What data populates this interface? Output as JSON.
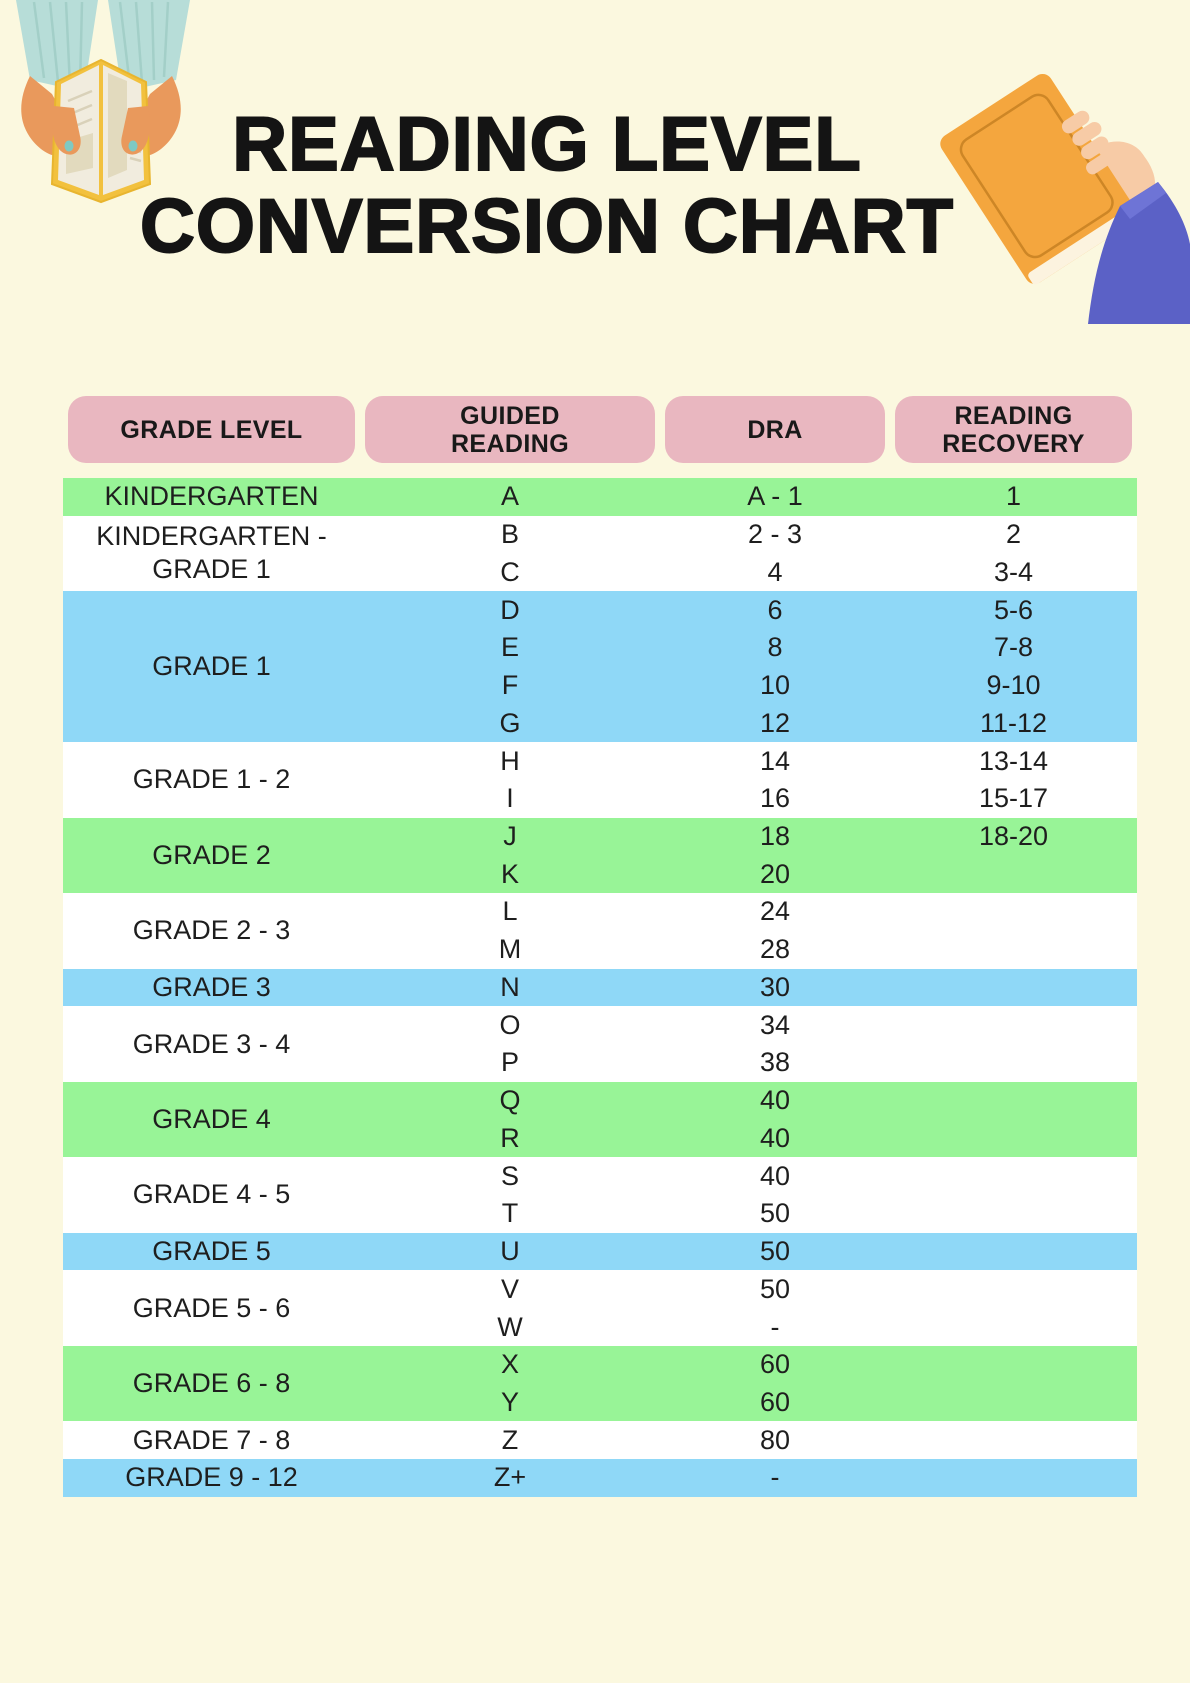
{
  "title": {
    "line1": "READING LEVEL",
    "line2": "CONVERSION CHART"
  },
  "colors": {
    "background": "#fbf8df",
    "header_pink": "#e9b7c0",
    "row_green": "#98f497",
    "row_blue": "#8fd8f7",
    "row_white": "#ffffff",
    "text": "#1e1e1e"
  },
  "illustrations": {
    "left": "hands-holding-open-book",
    "right": "hand-holding-orange-book"
  },
  "table": {
    "headers": [
      "GRADE LEVEL",
      "GUIDED READING",
      "DRA",
      "READING RECOVERY"
    ],
    "groups": [
      {
        "grade": "KINDERGARTEN",
        "color": "green",
        "rows": [
          {
            "gr": "A",
            "dra": "A - 1",
            "rr": "1"
          }
        ]
      },
      {
        "grade": "KINDERGARTEN - GRADE 1",
        "color": "white",
        "rows": [
          {
            "gr": "B",
            "dra": "2 - 3",
            "rr": "2"
          },
          {
            "gr": "C",
            "dra": "4",
            "rr": "3-4"
          }
        ]
      },
      {
        "grade": "GRADE 1",
        "color": "blue",
        "rows": [
          {
            "gr": "D",
            "dra": "6",
            "rr": "5-6"
          },
          {
            "gr": "E",
            "dra": "8",
            "rr": "7-8"
          },
          {
            "gr": "F",
            "dra": "10",
            "rr": "9-10"
          },
          {
            "gr": "G",
            "dra": "12",
            "rr": "11-12"
          }
        ]
      },
      {
        "grade": "GRADE 1 - 2",
        "color": "white",
        "rows": [
          {
            "gr": "H",
            "dra": "14",
            "rr": "13-14"
          },
          {
            "gr": "I",
            "dra": "16",
            "rr": "15-17"
          }
        ]
      },
      {
        "grade": "GRADE 2",
        "color": "green",
        "rows": [
          {
            "gr": "J",
            "dra": "18",
            "rr": "18-20"
          },
          {
            "gr": "K",
            "dra": "20",
            "rr": ""
          }
        ]
      },
      {
        "grade": "GRADE 2 - 3",
        "color": "white",
        "rows": [
          {
            "gr": "L",
            "dra": "24",
            "rr": ""
          },
          {
            "gr": "M",
            "dra": "28",
            "rr": ""
          }
        ]
      },
      {
        "grade": "GRADE 3",
        "color": "blue",
        "rows": [
          {
            "gr": "N",
            "dra": "30",
            "rr": ""
          }
        ]
      },
      {
        "grade": "GRADE 3 - 4",
        "color": "white",
        "rows": [
          {
            "gr": "O",
            "dra": "34",
            "rr": ""
          },
          {
            "gr": "P",
            "dra": "38",
            "rr": ""
          }
        ]
      },
      {
        "grade": "GRADE 4",
        "color": "green",
        "rows": [
          {
            "gr": "Q",
            "dra": "40",
            "rr": ""
          },
          {
            "gr": "R",
            "dra": "40",
            "rr": ""
          }
        ]
      },
      {
        "grade": "GRADE 4 - 5",
        "color": "white",
        "rows": [
          {
            "gr": "S",
            "dra": "40",
            "rr": ""
          },
          {
            "gr": "T",
            "dra": "50",
            "rr": ""
          }
        ]
      },
      {
        "grade": "GRADE 5",
        "color": "blue",
        "rows": [
          {
            "gr": "U",
            "dra": "50",
            "rr": ""
          }
        ]
      },
      {
        "grade": "GRADE 5 - 6",
        "color": "white",
        "rows": [
          {
            "gr": "V",
            "dra": "50",
            "rr": ""
          },
          {
            "gr": "W",
            "dra": "-",
            "rr": ""
          }
        ]
      },
      {
        "grade": "GRADE 6 - 8",
        "color": "green",
        "rows": [
          {
            "gr": "X",
            "dra": "60",
            "rr": ""
          },
          {
            "gr": "Y",
            "dra": "60",
            "rr": ""
          }
        ]
      },
      {
        "grade": "GRADE 7 - 8",
        "color": "white",
        "rows": [
          {
            "gr": "Z",
            "dra": "80",
            "rr": ""
          }
        ]
      },
      {
        "grade": "GRADE 9 - 12",
        "color": "blue",
        "rows": [
          {
            "gr": "Z+",
            "dra": "-",
            "rr": ""
          }
        ]
      }
    ]
  }
}
